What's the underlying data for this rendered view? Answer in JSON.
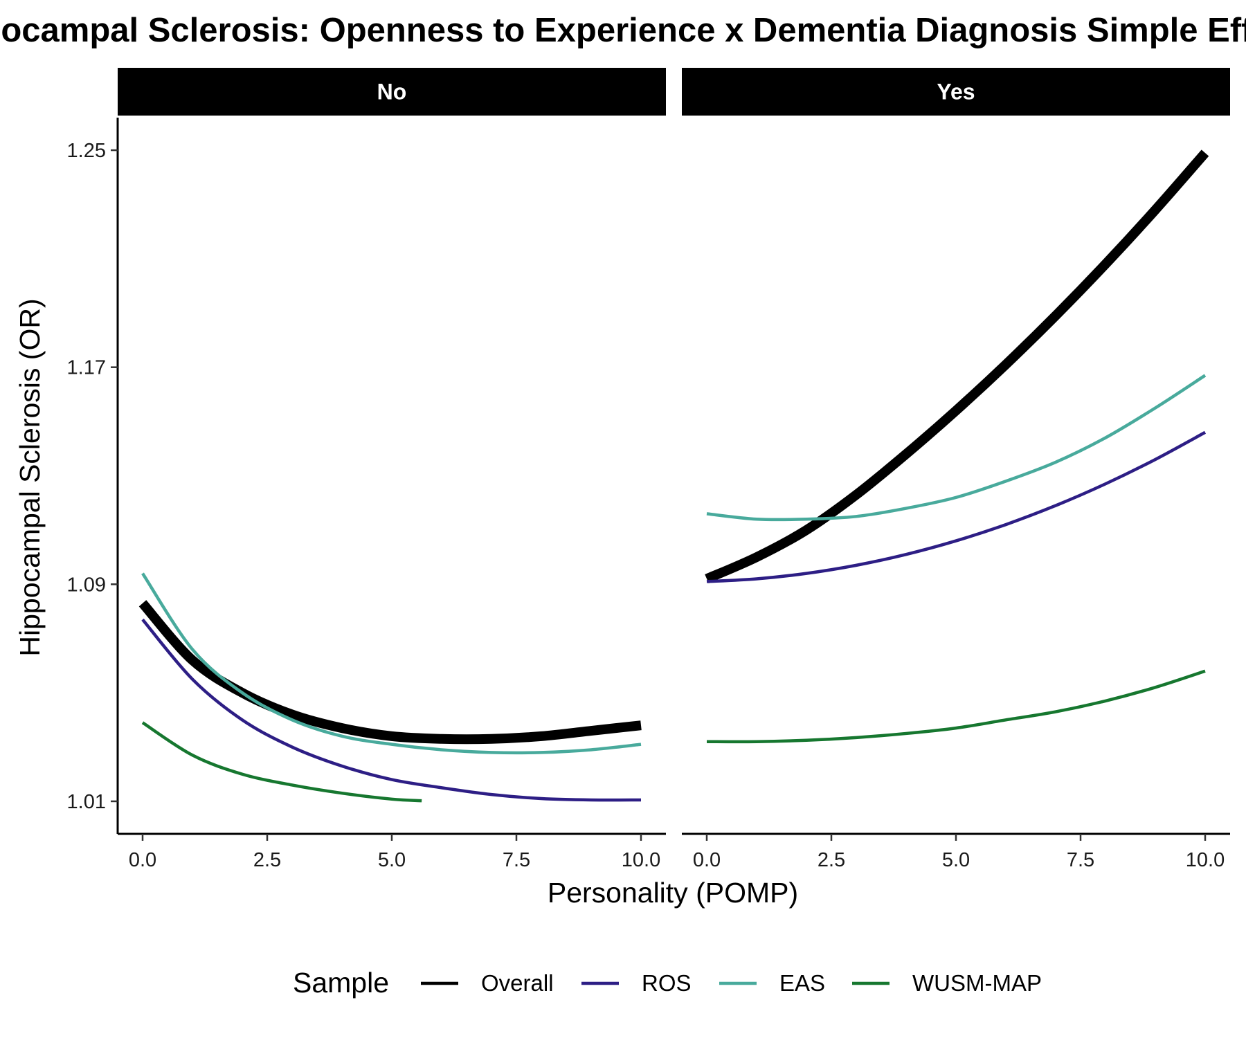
{
  "chart_data": {
    "type": "line",
    "title": "Hippocampal Sclerosis: Openness to Experience x Dementia Diagnosis Simple Effects",
    "xlabel": "Personality (POMP)",
    "ylabel": "Hippocampal Sclerosis (OR)",
    "xlim": [
      -0.5,
      10.5
    ],
    "ylim": [
      0.998,
      1.262
    ],
    "x_ticks": [
      0,
      2.5,
      5,
      7.5,
      10
    ],
    "x_tick_labels": [
      "0.0",
      "2.5",
      "5.0",
      "7.5",
      "10.0"
    ],
    "y_ticks": [
      1.01,
      1.09,
      1.17,
      1.25
    ],
    "y_tick_labels": [
      "1.01",
      "1.09",
      "1.17",
      "1.25"
    ],
    "grid": false,
    "legend_position": "bottom",
    "legend_title": "Sample",
    "series_meta": [
      {
        "name": "Overall",
        "color": "#000000",
        "width": "thick"
      },
      {
        "name": "ROS",
        "color": "#2d1e85",
        "width": "normal"
      },
      {
        "name": "EAS",
        "color": "#48aa9c",
        "width": "normal"
      },
      {
        "name": "WUSM-MAP",
        "color": "#16772f",
        "width": "normal"
      }
    ],
    "panels": [
      {
        "label": "No",
        "series": [
          {
            "name": "Overall",
            "x": [
              0,
              1,
              2,
              3,
              4,
              5,
              6,
              7,
              8,
              9,
              10
            ],
            "values": [
              1.083,
              1.062,
              1.05,
              1.042,
              1.037,
              1.034,
              1.033,
              1.033,
              1.034,
              1.036,
              1.038
            ]
          },
          {
            "name": "ROS",
            "x": [
              0,
              1,
              2,
              3,
              4,
              5,
              6,
              7,
              8,
              9,
              10
            ],
            "values": [
              1.077,
              1.055,
              1.04,
              1.03,
              1.023,
              1.018,
              1.015,
              1.0125,
              1.011,
              1.0105,
              1.0105
            ]
          },
          {
            "name": "EAS",
            "x": [
              0,
              1,
              2,
              3,
              4,
              5,
              6,
              7,
              8,
              9,
              10
            ],
            "values": [
              1.094,
              1.066,
              1.05,
              1.04,
              1.034,
              1.031,
              1.029,
              1.028,
              1.028,
              1.029,
              1.031
            ]
          },
          {
            "name": "WUSM-MAP",
            "x": [
              0,
              1,
              2,
              3,
              4,
              5,
              5.6
            ],
            "values": [
              1.039,
              1.027,
              1.02,
              1.016,
              1.013,
              1.0108,
              1.0102
            ]
          }
        ]
      },
      {
        "label": "Yes",
        "series": [
          {
            "name": "Overall",
            "x": [
              0,
              1,
              2,
              3,
              4,
              5,
              6,
              7,
              8,
              9,
              10
            ],
            "values": [
              1.092,
              1.1,
              1.11,
              1.123,
              1.138,
              1.154,
              1.171,
              1.189,
              1.208,
              1.228,
              1.249
            ]
          },
          {
            "name": "ROS",
            "x": [
              0,
              1,
              2,
              3,
              4,
              5,
              6,
              7,
              8,
              9,
              10
            ],
            "values": [
              1.091,
              1.092,
              1.094,
              1.097,
              1.101,
              1.106,
              1.112,
              1.119,
              1.127,
              1.136,
              1.146
            ]
          },
          {
            "name": "EAS",
            "x": [
              0,
              1,
              2,
              3,
              4,
              5,
              6,
              7,
              8,
              9,
              10
            ],
            "values": [
              1.116,
              1.114,
              1.114,
              1.115,
              1.118,
              1.122,
              1.128,
              1.135,
              1.144,
              1.155,
              1.167
            ]
          },
          {
            "name": "WUSM-MAP",
            "x": [
              0,
              1,
              2,
              3,
              4,
              5,
              6,
              7,
              8,
              9,
              10
            ],
            "values": [
              1.032,
              1.032,
              1.0325,
              1.0335,
              1.035,
              1.037,
              1.04,
              1.043,
              1.047,
              1.052,
              1.058
            ]
          }
        ]
      }
    ]
  }
}
